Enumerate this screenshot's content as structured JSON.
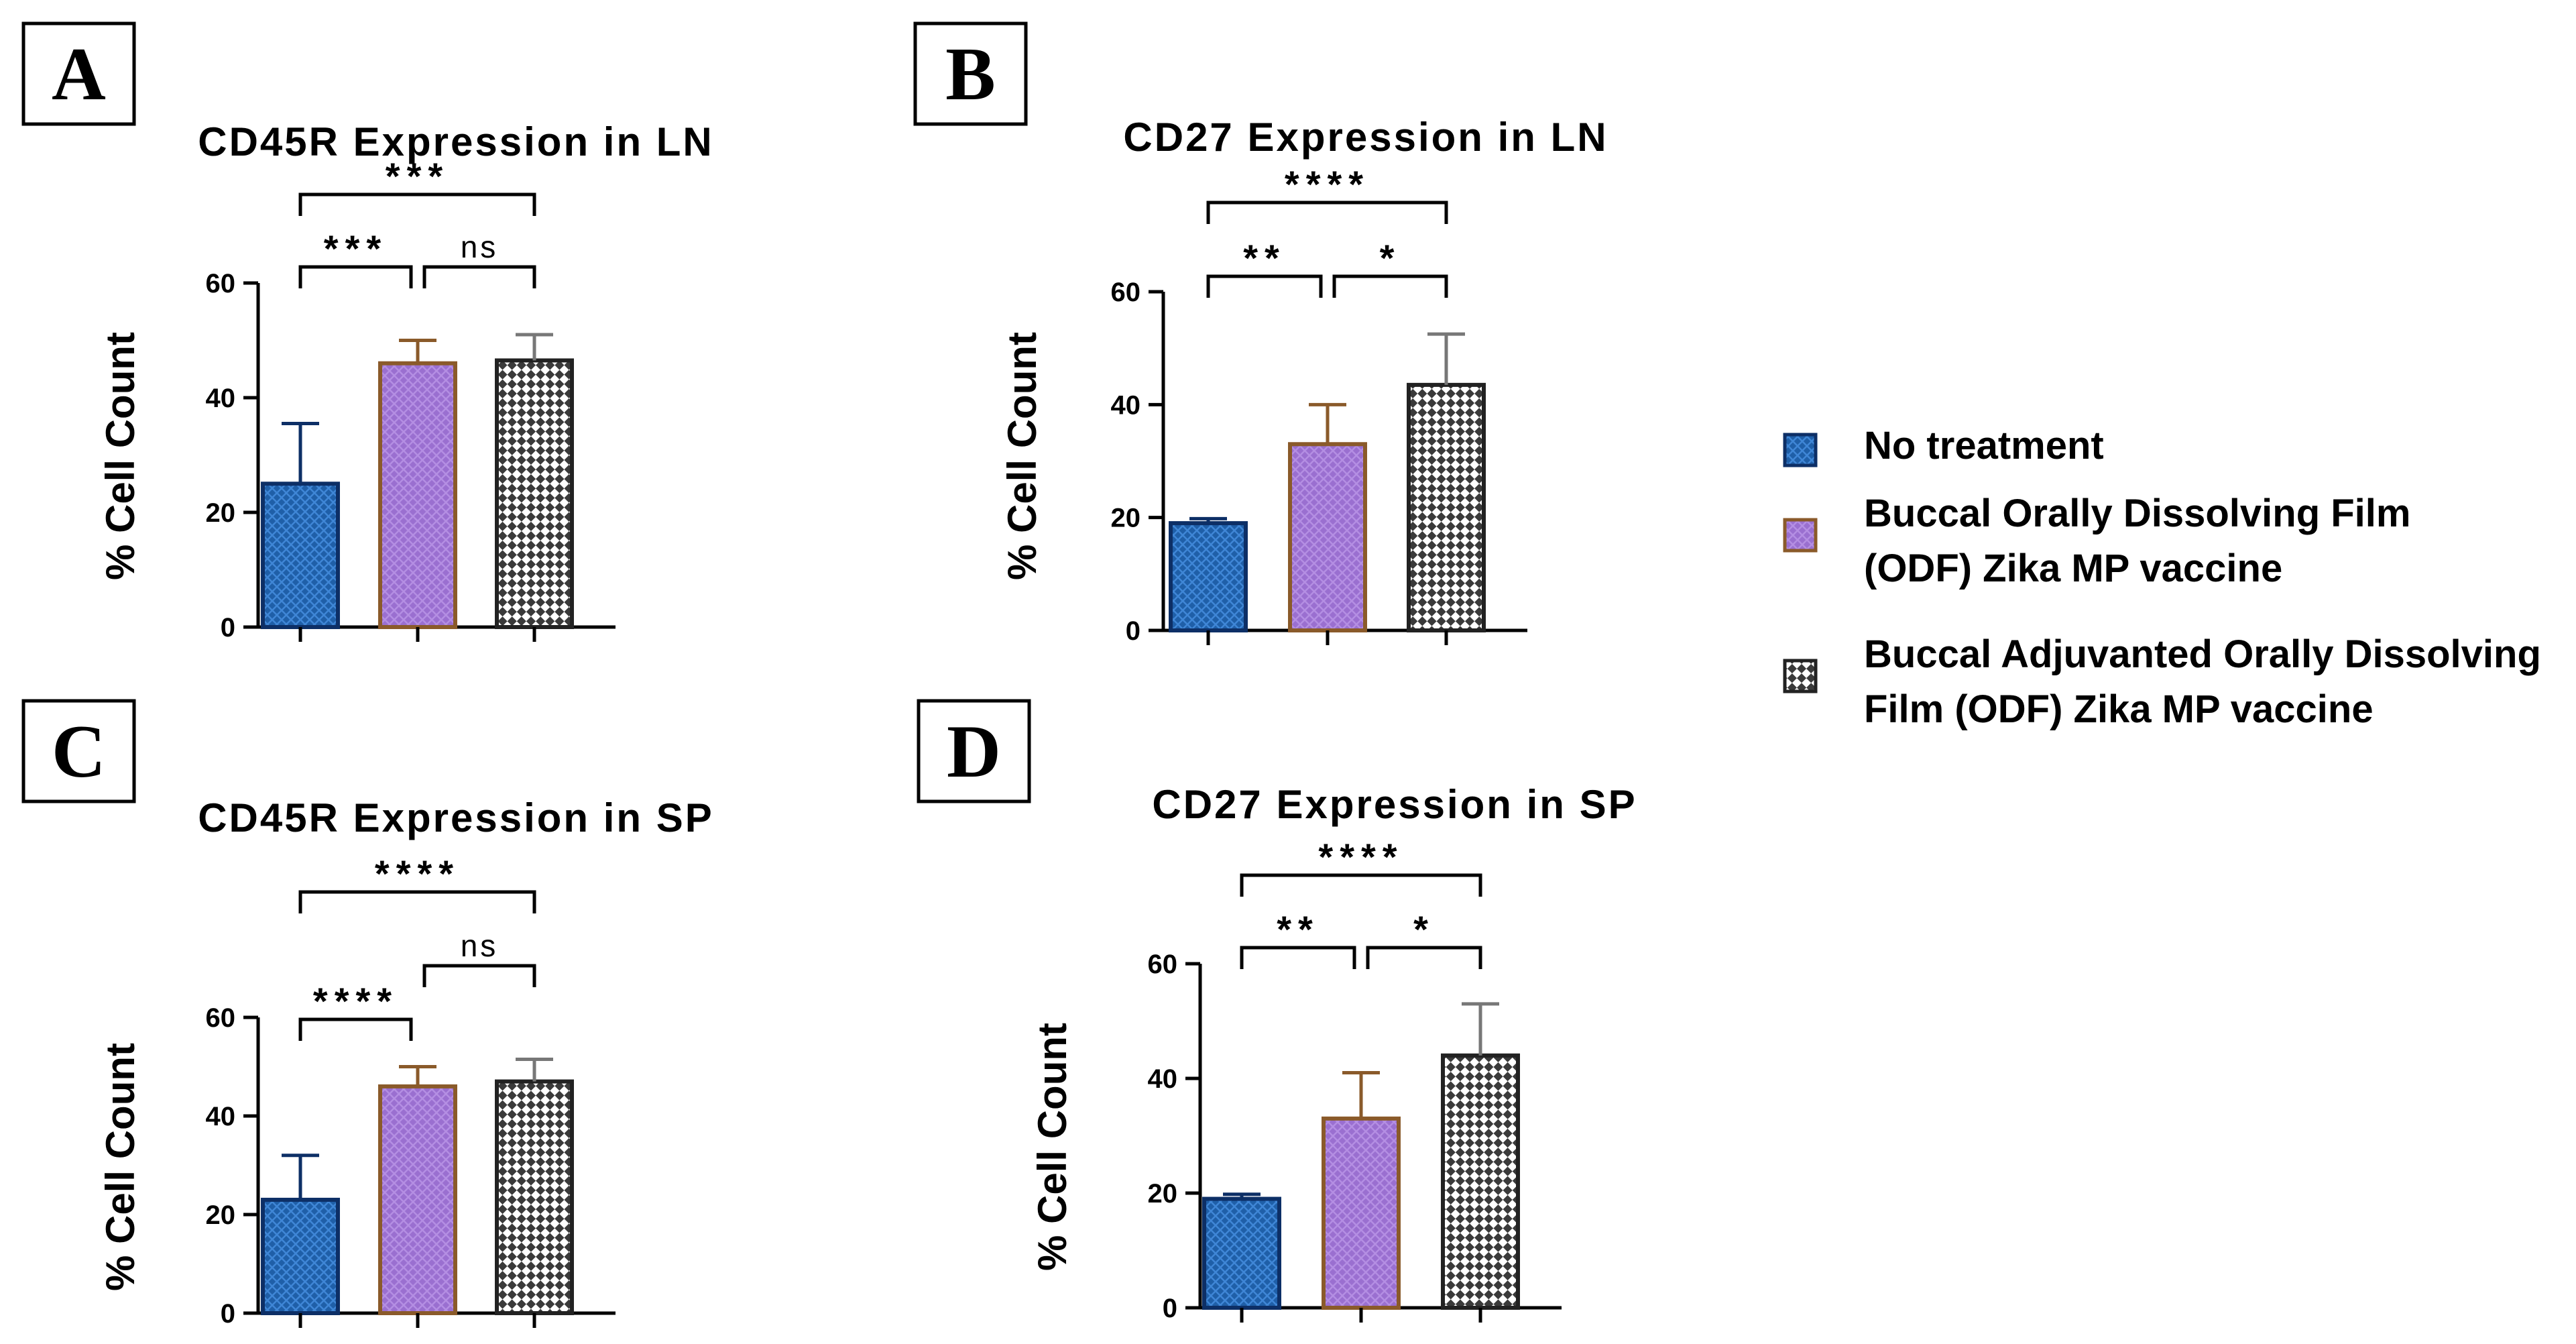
{
  "colors": {
    "no_treatment": "#1f5fa8",
    "odf": "#9a6fd0",
    "odf_border": "#8a5a2a",
    "adjuvanted": "#3a3a3a"
  },
  "legend": [
    {
      "label_lines": [
        "No treatment"
      ],
      "pattern": "blue-crosshatch"
    },
    {
      "label_lines": [
        "Buccal Orally Dissolving Film",
        "(ODF) Zika MP vaccine"
      ],
      "pattern": "purple-crosshatch"
    },
    {
      "label_lines": [
        "Buccal Adjuvanted Orally Dissolving",
        "Film (ODF) Zika MP vaccine"
      ],
      "pattern": "checkerboard"
    }
  ],
  "chart_data": [
    {
      "panel": "A",
      "type": "bar",
      "title": "CD45R Expression in LN",
      "ylabel": "% Cell Count",
      "ylim": [
        0,
        60
      ],
      "yticks": [
        0,
        20,
        40,
        60
      ],
      "categories": [
        "",
        "",
        ""
      ],
      "values": [
        25,
        46,
        46.5
      ],
      "errors": [
        10.5,
        4,
        4.5
      ],
      "comparisons": [
        {
          "from": 0,
          "to": 2,
          "label": "***"
        },
        {
          "from": 0,
          "to": 1,
          "label": "***"
        },
        {
          "from": 1,
          "to": 2,
          "label": "ns"
        }
      ]
    },
    {
      "panel": "B",
      "type": "bar",
      "title": "CD27 Expression in LN",
      "ylabel": "% Cell Count",
      "ylim": [
        0,
        60
      ],
      "yticks": [
        0,
        20,
        40,
        60
      ],
      "categories": [
        "",
        "",
        ""
      ],
      "values": [
        19,
        33,
        43.5
      ],
      "errors": [
        0.8,
        7,
        9
      ],
      "comparisons": [
        {
          "from": 0,
          "to": 2,
          "label": "****"
        },
        {
          "from": 0,
          "to": 1,
          "label": "**"
        },
        {
          "from": 1,
          "to": 2,
          "label": "*"
        }
      ]
    },
    {
      "panel": "C",
      "type": "bar",
      "title": "CD45R Expression in SP",
      "ylabel": "% Cell Count",
      "ylim": [
        0,
        60
      ],
      "yticks": [
        0,
        20,
        40,
        60
      ],
      "categories": [
        "",
        "",
        ""
      ],
      "values": [
        23,
        46,
        47
      ],
      "errors": [
        9,
        4,
        4.5
      ],
      "comparisons": [
        {
          "from": 0,
          "to": 2,
          "label": "****"
        },
        {
          "from": 1,
          "to": 2,
          "label": "ns"
        },
        {
          "from": 0,
          "to": 1,
          "label": "****"
        }
      ]
    },
    {
      "panel": "D",
      "type": "bar",
      "title": "CD27 Expression in SP",
      "ylabel": "% Cell Count",
      "ylim": [
        0,
        60
      ],
      "yticks": [
        0,
        20,
        40,
        60
      ],
      "categories": [
        "",
        "",
        ""
      ],
      "values": [
        19,
        33,
        44
      ],
      "errors": [
        0.8,
        8,
        9
      ],
      "comparisons": [
        {
          "from": 0,
          "to": 2,
          "label": "****"
        },
        {
          "from": 0,
          "to": 1,
          "label": "**"
        },
        {
          "from": 1,
          "to": 2,
          "label": "*"
        }
      ]
    }
  ]
}
